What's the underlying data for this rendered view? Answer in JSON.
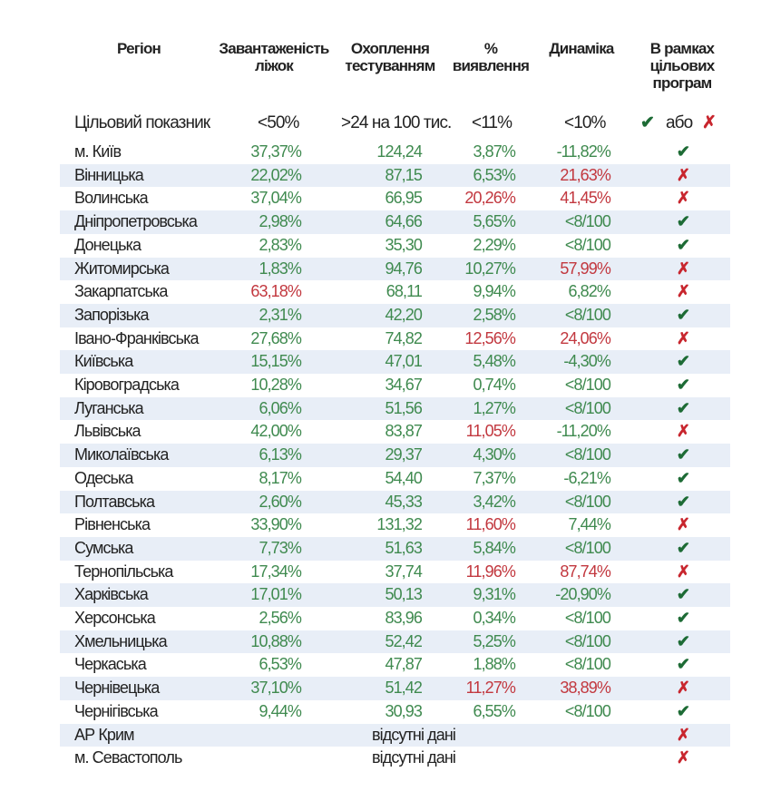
{
  "headers": {
    "region": "Регіон",
    "beds": "Завантаженість ліжок",
    "testing": "Охоплення тестуванням",
    "detection": "% виявлення",
    "dynamics": "Динаміка",
    "programs": "В рамках цільових програм"
  },
  "target": {
    "label": "Цільовий показник",
    "beds": "<50%",
    "testing": ">24 на 100 тис.",
    "detection": "<11%",
    "dynamics": "<10%",
    "or": "або"
  },
  "colors": {
    "green": "#3f8a4f",
    "red": "#c2383f",
    "check": "#1d6b35",
    "cross": "#c8262e",
    "stripe": "#e8eef7"
  },
  "no_data_label": "відсутні дані",
  "rows": [
    {
      "region": "м. Київ",
      "beds": [
        "37,37%",
        "g"
      ],
      "testing": [
        "124,24",
        "g"
      ],
      "detection": [
        "3,87%",
        "g"
      ],
      "dynamics": [
        "-11,82%",
        "g"
      ],
      "ok": true
    },
    {
      "region": "Вінницька",
      "beds": [
        "22,02%",
        "g"
      ],
      "testing": [
        "87,15",
        "g"
      ],
      "detection": [
        "6,53%",
        "g"
      ],
      "dynamics": [
        "21,63%",
        "r"
      ],
      "ok": false
    },
    {
      "region": "Волинська",
      "beds": [
        "37,04%",
        "g"
      ],
      "testing": [
        "66,95",
        "g"
      ],
      "detection": [
        "20,26%",
        "r"
      ],
      "dynamics": [
        "41,45%",
        "r"
      ],
      "ok": false
    },
    {
      "region": "Дніпропетровська",
      "beds": [
        "2,98%",
        "g"
      ],
      "testing": [
        "64,66",
        "g"
      ],
      "detection": [
        "5,65%",
        "g"
      ],
      "dynamics": [
        "<8/100",
        "g"
      ],
      "ok": true
    },
    {
      "region": "Донецька",
      "beds": [
        "2,83%",
        "g"
      ],
      "testing": [
        "35,30",
        "g"
      ],
      "detection": [
        "2,29%",
        "g"
      ],
      "dynamics": [
        "<8/100",
        "g"
      ],
      "ok": true
    },
    {
      "region": "Житомирська",
      "beds": [
        "1,83%",
        "g"
      ],
      "testing": [
        "94,76",
        "g"
      ],
      "detection": [
        "10,27%",
        "g"
      ],
      "dynamics": [
        "57,99%",
        "r"
      ],
      "ok": false
    },
    {
      "region": "Закарпатська",
      "beds": [
        "63,18%",
        "r"
      ],
      "testing": [
        "68,11",
        "g"
      ],
      "detection": [
        "9,94%",
        "g"
      ],
      "dynamics": [
        "6,82%",
        "g"
      ],
      "ok": false
    },
    {
      "region": "Запорізька",
      "beds": [
        "2,31%",
        "g"
      ],
      "testing": [
        "42,20",
        "g"
      ],
      "detection": [
        "2,58%",
        "g"
      ],
      "dynamics": [
        "<8/100",
        "g"
      ],
      "ok": true
    },
    {
      "region": "Івано-Франківська",
      "beds": [
        "27,68%",
        "g"
      ],
      "testing": [
        "74,82",
        "g"
      ],
      "detection": [
        "12,56%",
        "r"
      ],
      "dynamics": [
        "24,06%",
        "r"
      ],
      "ok": false
    },
    {
      "region": "Київська",
      "beds": [
        "15,15%",
        "g"
      ],
      "testing": [
        "47,01",
        "g"
      ],
      "detection": [
        "5,48%",
        "g"
      ],
      "dynamics": [
        "-4,30%",
        "g"
      ],
      "ok": true
    },
    {
      "region": "Кіровоградська",
      "beds": [
        "10,28%",
        "g"
      ],
      "testing": [
        "34,67",
        "g"
      ],
      "detection": [
        "0,74%",
        "g"
      ],
      "dynamics": [
        "<8/100",
        "g"
      ],
      "ok": true
    },
    {
      "region": "Луганська",
      "beds": [
        "6,06%",
        "g"
      ],
      "testing": [
        "51,56",
        "g"
      ],
      "detection": [
        "1,27%",
        "g"
      ],
      "dynamics": [
        "<8/100",
        "g"
      ],
      "ok": true
    },
    {
      "region": "Львівська",
      "beds": [
        "42,00%",
        "g"
      ],
      "testing": [
        "83,87",
        "g"
      ],
      "detection": [
        "11,05%",
        "r"
      ],
      "dynamics": [
        "-11,20%",
        "g"
      ],
      "ok": false
    },
    {
      "region": "Миколаївська",
      "beds": [
        "6,13%",
        "g"
      ],
      "testing": [
        "29,37",
        "g"
      ],
      "detection": [
        "4,30%",
        "g"
      ],
      "dynamics": [
        "<8/100",
        "g"
      ],
      "ok": true
    },
    {
      "region": "Одеська",
      "beds": [
        "8,17%",
        "g"
      ],
      "testing": [
        "54,40",
        "g"
      ],
      "detection": [
        "7,37%",
        "g"
      ],
      "dynamics": [
        "-6,21%",
        "g"
      ],
      "ok": true
    },
    {
      "region": "Полтавська",
      "beds": [
        "2,60%",
        "g"
      ],
      "testing": [
        "45,33",
        "g"
      ],
      "detection": [
        "3,42%",
        "g"
      ],
      "dynamics": [
        "<8/100",
        "g"
      ],
      "ok": true
    },
    {
      "region": "Рівненська",
      "beds": [
        "33,90%",
        "g"
      ],
      "testing": [
        "131,32",
        "g"
      ],
      "detection": [
        "11,60%",
        "r"
      ],
      "dynamics": [
        "7,44%",
        "g"
      ],
      "ok": false
    },
    {
      "region": "Сумська",
      "beds": [
        "7,73%",
        "g"
      ],
      "testing": [
        "51,63",
        "g"
      ],
      "detection": [
        "5,84%",
        "g"
      ],
      "dynamics": [
        "<8/100",
        "g"
      ],
      "ok": true
    },
    {
      "region": "Тернопільська",
      "beds": [
        "17,34%",
        "g"
      ],
      "testing": [
        "37,74",
        "g"
      ],
      "detection": [
        "11,96%",
        "r"
      ],
      "dynamics": [
        "87,74%",
        "r"
      ],
      "ok": false
    },
    {
      "region": "Харківська",
      "beds": [
        "17,01%",
        "g"
      ],
      "testing": [
        "50,13",
        "g"
      ],
      "detection": [
        "9,31%",
        "g"
      ],
      "dynamics": [
        "-20,90%",
        "g"
      ],
      "ok": true
    },
    {
      "region": "Херсонська",
      "beds": [
        "2,56%",
        "g"
      ],
      "testing": [
        "83,96",
        "g"
      ],
      "detection": [
        "0,34%",
        "g"
      ],
      "dynamics": [
        "<8/100",
        "g"
      ],
      "ok": true
    },
    {
      "region": "Хмельницька",
      "beds": [
        "10,88%",
        "g"
      ],
      "testing": [
        "52,42",
        "g"
      ],
      "detection": [
        "5,25%",
        "g"
      ],
      "dynamics": [
        "<8/100",
        "g"
      ],
      "ok": true
    },
    {
      "region": "Черкаська",
      "beds": [
        "6,53%",
        "g"
      ],
      "testing": [
        "47,87",
        "g"
      ],
      "detection": [
        "1,88%",
        "g"
      ],
      "dynamics": [
        "<8/100",
        "g"
      ],
      "ok": true
    },
    {
      "region": "Чернівецька",
      "beds": [
        "37,10%",
        "g"
      ],
      "testing": [
        "51,42",
        "g"
      ],
      "detection": [
        "11,27%",
        "r"
      ],
      "dynamics": [
        "38,89%",
        "r"
      ],
      "ok": false
    },
    {
      "region": "Чернігівська",
      "beds": [
        "9,44%",
        "g"
      ],
      "testing": [
        "30,93",
        "g"
      ],
      "detection": [
        "6,55%",
        "g"
      ],
      "dynamics": [
        "<8/100",
        "g"
      ],
      "ok": true
    },
    {
      "region": "АР Крим",
      "no_data": true,
      "ok": false
    },
    {
      "region": "м. Севастополь",
      "no_data": true,
      "ok": false
    }
  ]
}
